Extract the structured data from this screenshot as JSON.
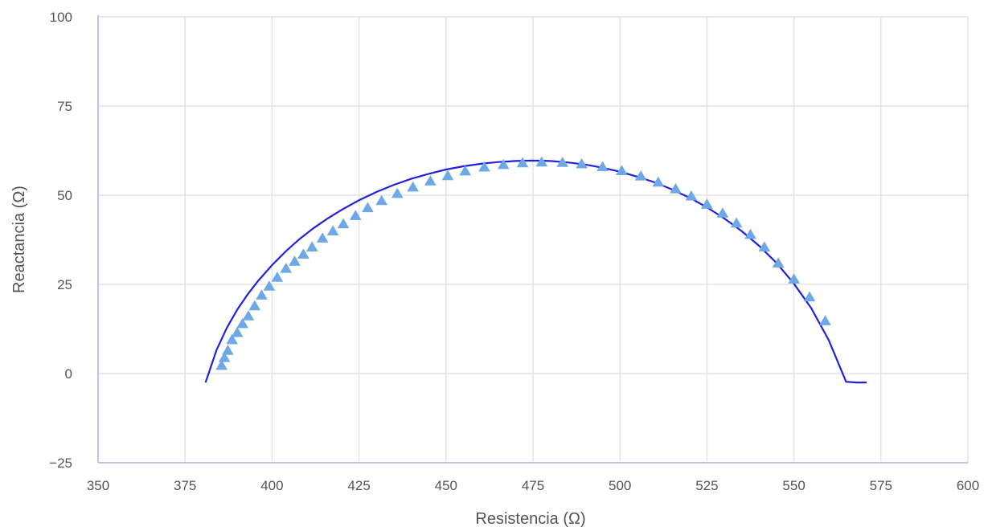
{
  "chart_data": {
    "type": "scatter",
    "xlabel": "Resistencia (Ω)",
    "ylabel": "Reactancia (Ω)",
    "xlim": [
      350,
      600
    ],
    "ylim": [
      -25,
      100
    ],
    "x_ticks": [
      350,
      375,
      400,
      425,
      450,
      475,
      500,
      525,
      550,
      575,
      600
    ],
    "y_ticks": [
      -25,
      0,
      25,
      50,
      75,
      100
    ],
    "x_tick_labels": [
      "350",
      "375",
      "400",
      "425",
      "450",
      "475",
      "500",
      "525",
      "550",
      "575",
      "600"
    ],
    "y_tick_labels": [
      "−25",
      "0",
      "25",
      "50",
      "75",
      "100"
    ],
    "grid": true,
    "legend": "none",
    "series": [
      {
        "kind": "line",
        "color": "#2222dd",
        "x": [
          380.9,
          384,
          387,
          390,
          393,
          396,
          400,
          404,
          408,
          412,
          416,
          420,
          425,
          430,
          435,
          440,
          445,
          450,
          455,
          460,
          465,
          470,
          475,
          480,
          485,
          490,
          495,
          500,
          505,
          510,
          515,
          520,
          525,
          530,
          535,
          540,
          545,
          550,
          555,
          560,
          565,
          568,
          570.9
        ],
        "y": [
          -2.5,
          6.5,
          12.8,
          17.9,
          22.2,
          26.0,
          30.4,
          34.3,
          37.8,
          40.8,
          43.5,
          45.9,
          48.6,
          50.9,
          52.9,
          54.6,
          56.0,
          57.2,
          58.1,
          58.8,
          59.3,
          59.6,
          59.7,
          59.6,
          59.2,
          58.6,
          57.7,
          56.6,
          55.2,
          53.6,
          51.6,
          49.3,
          46.6,
          43.5,
          39.9,
          35.8,
          31.0,
          25.2,
          18.3,
          9.4,
          -2.3,
          -2.5,
          -2.5
        ]
      },
      {
        "kind": "scatter",
        "marker": "triangle",
        "color": "#6fa8e6",
        "x": [
          385.5,
          386.3,
          387.3,
          388.5,
          390.0,
          391.5,
          393.2,
          395.0,
          397.0,
          399.2,
          401.5,
          404.0,
          406.5,
          409.0,
          411.5,
          414.5,
          417.5,
          420.5,
          424.0,
          427.5,
          431.5,
          436.0,
          440.5,
          445.5,
          450.5,
          455.5,
          461.0,
          466.5,
          472.0,
          477.5,
          483.5,
          489.0,
          495.0,
          500.5,
          506.0,
          511.0,
          516.0,
          520.5,
          525.0,
          529.5,
          533.5,
          537.5,
          541.5,
          545.5,
          550.0,
          554.5,
          559.0
        ],
        "y": [
          2.3,
          4.5,
          6.5,
          9.5,
          11.5,
          14.0,
          16.2,
          19.0,
          22.0,
          24.5,
          27.0,
          29.5,
          31.5,
          33.5,
          35.5,
          38.0,
          40.0,
          42.0,
          44.3,
          46.5,
          48.5,
          50.5,
          52.3,
          54.0,
          55.5,
          56.8,
          57.9,
          58.6,
          59.1,
          59.3,
          59.2,
          58.8,
          58.0,
          56.9,
          55.4,
          53.7,
          51.8,
          49.8,
          47.5,
          45.0,
          42.2,
          39.0,
          35.5,
          31.0,
          26.5,
          21.5,
          14.8
        ]
      }
    ]
  }
}
